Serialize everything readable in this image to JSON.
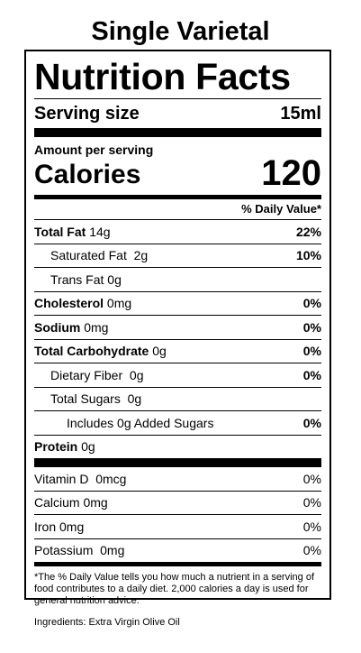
{
  "title": "Single Varietal",
  "label": {
    "heading": "Nutrition Facts",
    "serving_size_label": "Serving size",
    "serving_size_value": "15ml",
    "amount_per_serving": "Amount per serving",
    "calories_label": "Calories",
    "calories_value": "120",
    "daily_value_header": "% Daily Value*",
    "nutrients": [
      {
        "name": "Total Fat",
        "amount": "14g",
        "dv": "22%"
      },
      {
        "name": "Saturated Fat",
        "amount": "2g",
        "dv": "10%"
      },
      {
        "name": "Trans Fat",
        "amount": "0g",
        "dv": ""
      },
      {
        "name": "Cholesterol",
        "amount": "0mg",
        "dv": "0%"
      },
      {
        "name": "Sodium",
        "amount": "0mg",
        "dv": "0%"
      },
      {
        "name": "Total Carbohydrate",
        "amount": "0g",
        "dv": "0%"
      },
      {
        "name": "Dietary Fiber",
        "amount": "0g",
        "dv": "0%"
      },
      {
        "name": "Total Sugars",
        "amount": "0g",
        "dv": ""
      },
      {
        "name": "Includes 0g Added Sugars",
        "amount": "",
        "dv": "0%"
      },
      {
        "name": "Protein",
        "amount": "0g",
        "dv": ""
      }
    ],
    "vitamins": [
      {
        "name": "Vitamin D",
        "amount": "0mcg",
        "dv": "0%"
      },
      {
        "name": "Calcium",
        "amount": "0mg",
        "dv": "0%"
      },
      {
        "name": "Iron",
        "amount": "0mg",
        "dv": "0%"
      },
      {
        "name": "Potassium",
        "amount": "0mg",
        "dv": "0%"
      }
    ],
    "footnote": "*The % Daily Value tells you how much a nutrient in a serving of food contributes to a daily diet. 2,000 calories a day is used for general nutrition advice."
  },
  "ingredients": "Ingredients: Extra Virgin Olive Oil"
}
